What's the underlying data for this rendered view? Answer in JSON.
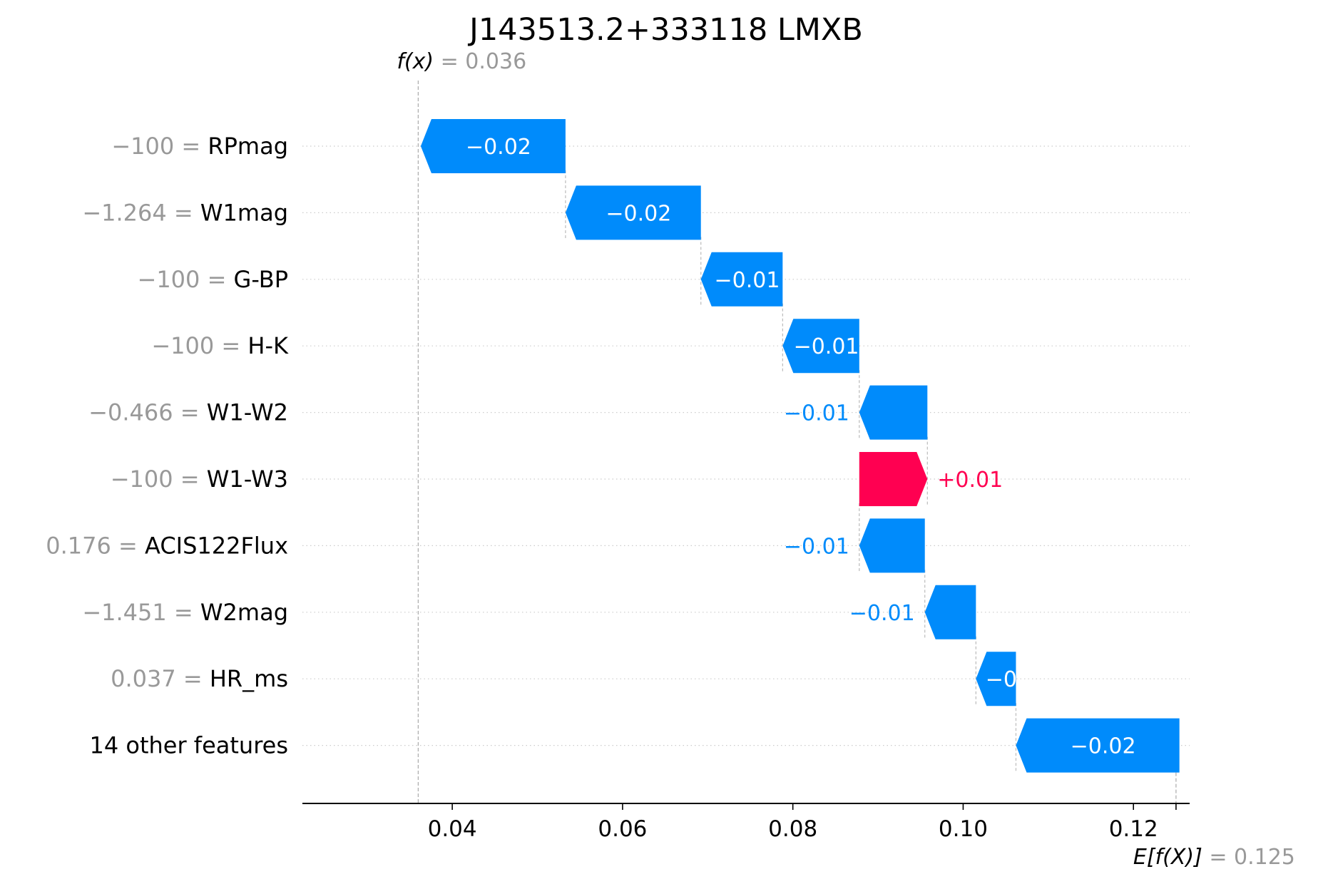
{
  "chart_data": {
    "type": "waterfall",
    "title": "J143513.2+333118 LMXB",
    "fx": {
      "label_italic": "f(x)",
      "eq": " = ",
      "value": 0.036,
      "value_text": "0.036"
    },
    "efx": {
      "label_italic": "E[f(X)]",
      "eq": " = ",
      "value": 0.125,
      "value_text": "0.125"
    },
    "xlim": [
      0.0224,
      0.1266
    ],
    "xticks": [
      {
        "value": 0.04,
        "label": "0.04"
      },
      {
        "value": 0.06,
        "label": "0.06"
      },
      {
        "value": 0.08,
        "label": "0.08"
      },
      {
        "value": 0.1,
        "label": "0.10"
      },
      {
        "value": 0.12,
        "label": "0.12"
      }
    ],
    "grid": "horizontal-dotted",
    "features": [
      {
        "value_text": "−100",
        "name": "RPmag",
        "start": 0.0533,
        "end": 0.0363,
        "contribution": "−0.02"
      },
      {
        "value_text": "−1.264",
        "name": "W1mag",
        "start": 0.0692,
        "end": 0.0533,
        "contribution": "−0.02"
      },
      {
        "value_text": "−100",
        "name": "G-BP",
        "start": 0.0788,
        "end": 0.0692,
        "contribution": "−0.01"
      },
      {
        "value_text": "−100",
        "name": "H-K",
        "start": 0.0878,
        "end": 0.0788,
        "contribution": "−0.01"
      },
      {
        "value_text": "−0.466",
        "name": "W1-W2",
        "start": 0.0958,
        "end": 0.0878,
        "contribution": "−0.01"
      },
      {
        "value_text": "−100",
        "name": "W1-W3",
        "start": 0.0878,
        "end": 0.0958,
        "contribution": "+0.01"
      },
      {
        "value_text": "0.176",
        "name": "ACIS122Flux",
        "start": 0.0955,
        "end": 0.0878,
        "contribution": "−0.01"
      },
      {
        "value_text": "−1.451",
        "name": "W2mag",
        "start": 0.1015,
        "end": 0.0955,
        "contribution": "−0.01"
      },
      {
        "value_text": "0.037",
        "name": "HR_ms",
        "start": 0.1062,
        "end": 0.1015,
        "contribution": "−0"
      },
      {
        "value_text": "",
        "name": "14 other features",
        "start": 0.1254,
        "end": 0.1062,
        "contribution": "−0.02"
      }
    ],
    "colors": {
      "positive": "#ff0051",
      "negative": "#008bfb",
      "label": "#000000",
      "muted": "#999999",
      "grid": "#cccccc",
      "axis": "#000000"
    }
  }
}
